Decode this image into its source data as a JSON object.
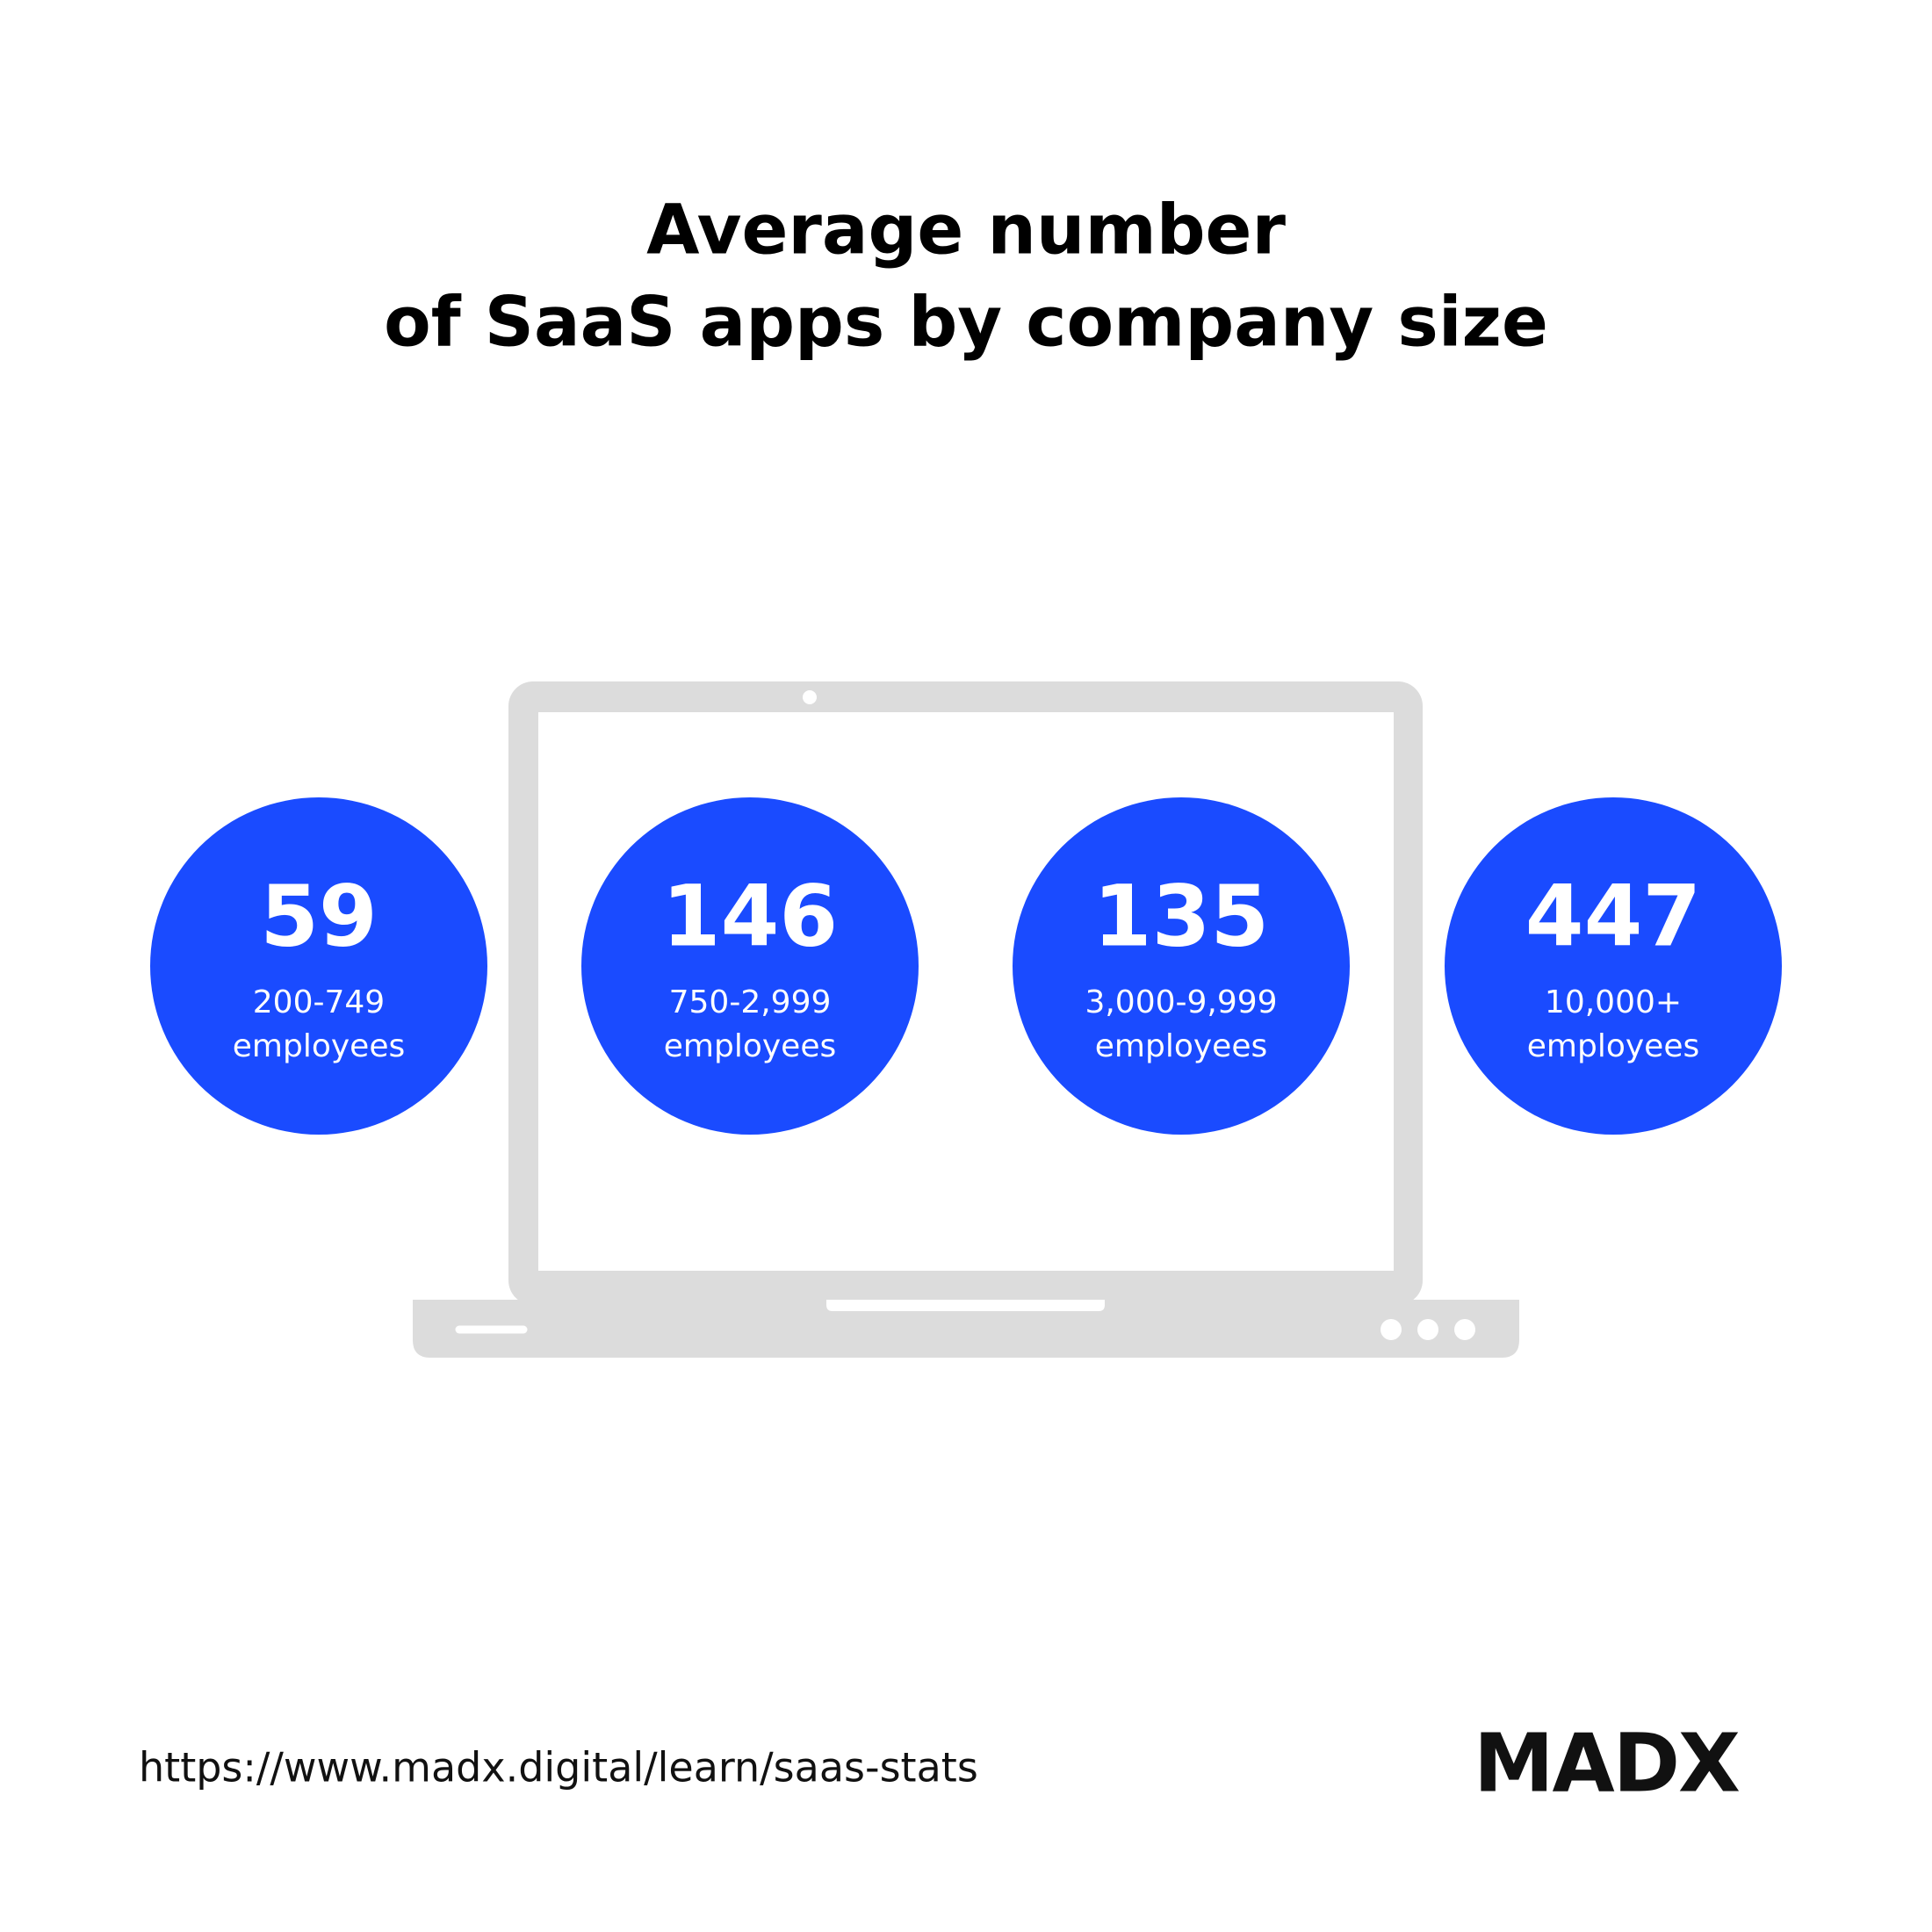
{
  "header": {
    "title_lines": [
      "Average number",
      "of SaaS apps by company size"
    ]
  },
  "stats": [
    {
      "value": "59",
      "label_lines": [
        "200-749",
        "employees"
      ]
    },
    {
      "value": "146",
      "label_lines": [
        "750-2,999",
        "employees"
      ]
    },
    {
      "value": "135",
      "label_lines": [
        "3,000-9,999",
        "employees"
      ]
    },
    {
      "value": "447",
      "label_lines": [
        "10,000+",
        "employees"
      ]
    }
  ],
  "footer": {
    "url": "https://www.madx.digital/learn/saas-stats",
    "logo": "MADX"
  }
}
